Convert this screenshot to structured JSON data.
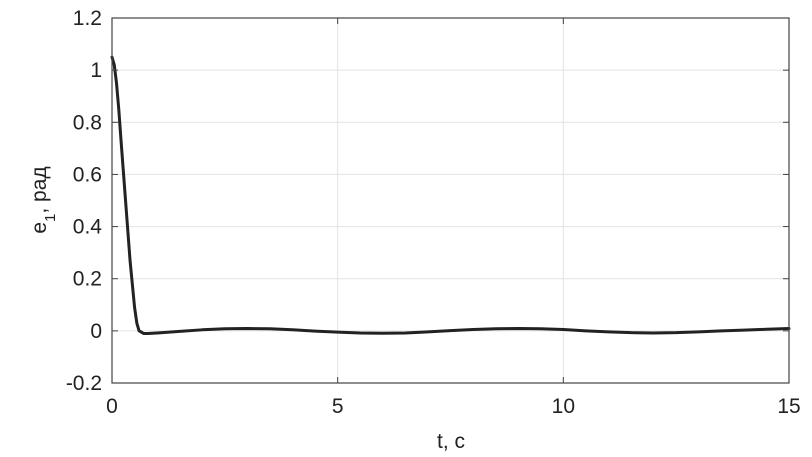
{
  "chart_data": {
    "type": "line",
    "xlabel": "t, c",
    "ylabel_main": "e",
    "ylabel_sub": "1",
    "ylabel_rest": ", рад",
    "xlim": [
      0,
      15
    ],
    "ylim": [
      -0.2,
      1.2
    ],
    "xticks": [
      0,
      5,
      10,
      15
    ],
    "xtick_labels": [
      "0",
      "5",
      "10",
      "15"
    ],
    "yticks": [
      -0.2,
      0,
      0.2,
      0.4,
      0.6,
      0.8,
      1,
      1.2
    ],
    "ytick_labels": [
      "-0.2",
      "0",
      "0.2",
      "0.4",
      "0.6",
      "0.8",
      "1",
      "1.2"
    ],
    "grid": true,
    "line_color": "#222222",
    "grid_color": "#e3e3e3",
    "series": [
      {
        "x": [
          0,
          0.05,
          0.1,
          0.15,
          0.2,
          0.3,
          0.4,
          0.5,
          0.55,
          0.6,
          0.7,
          0.8,
          1.0,
          1.5,
          2.0,
          2.5,
          3.0,
          3.5,
          4.0,
          4.5,
          5.0,
          5.5,
          6.0,
          6.5,
          7.0,
          7.5,
          8.0,
          8.5,
          9.0,
          9.5,
          10.0,
          10.5,
          11.0,
          11.5,
          12.0,
          12.5,
          13.0,
          13.5,
          14.0,
          14.5,
          15.0
        ],
        "y": [
          1.05,
          1.02,
          0.95,
          0.85,
          0.73,
          0.5,
          0.27,
          0.09,
          0.03,
          0.0,
          -0.01,
          -0.01,
          -0.008,
          -0.002,
          0.004,
          0.008,
          0.009,
          0.008,
          0.004,
          -0.001,
          -0.005,
          -0.008,
          -0.009,
          -0.008,
          -0.004,
          0.001,
          0.005,
          0.008,
          0.009,
          0.008,
          0.005,
          0.0,
          -0.004,
          -0.007,
          -0.008,
          -0.007,
          -0.004,
          0.0,
          0.003,
          0.006,
          0.009
        ]
      }
    ]
  }
}
